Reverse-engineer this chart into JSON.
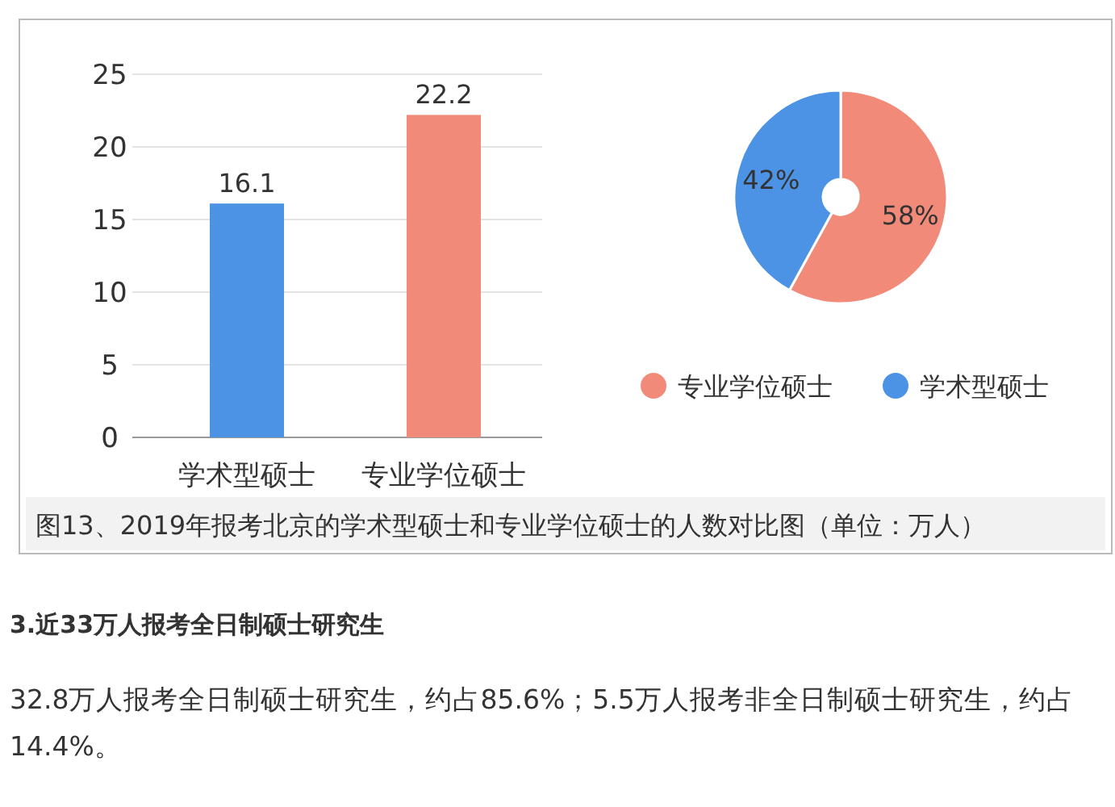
{
  "chart_data": [
    {
      "type": "bar",
      "categories": [
        "学术型硕士",
        "专业学位硕士"
      ],
      "colors": [
        "#4c93e6",
        "#f28a7a"
      ],
      "values": [
        16.1,
        22.2
      ],
      "ylim": [
        0,
        25
      ],
      "yticks": [
        0,
        5,
        10,
        15,
        20,
        25
      ],
      "grid": "y",
      "data_labels": true,
      "annotations": [
        "图13、2019年报考北京的学术型硕士和专业学位硕士的人数对比图（单位：万人）"
      ]
    },
    {
      "type": "donut",
      "categories": [
        "专业学位硕士",
        "学术型硕士"
      ],
      "values": [
        58,
        42
      ],
      "colors": [
        "#f28a7a",
        "#4c93e6"
      ],
      "value_labels": [
        "58%",
        "42%"
      ],
      "legend": "bottom"
    },
    {
      "type": "other",
      "annotations": [
        "3.近33万人报考全日制硕士研究生",
        "32.8万人报考全日制硕士研究生，约占85.6%；5.5万人报考非全日制硕士研究生，约占14.4%。"
      ]
    }
  ]
}
